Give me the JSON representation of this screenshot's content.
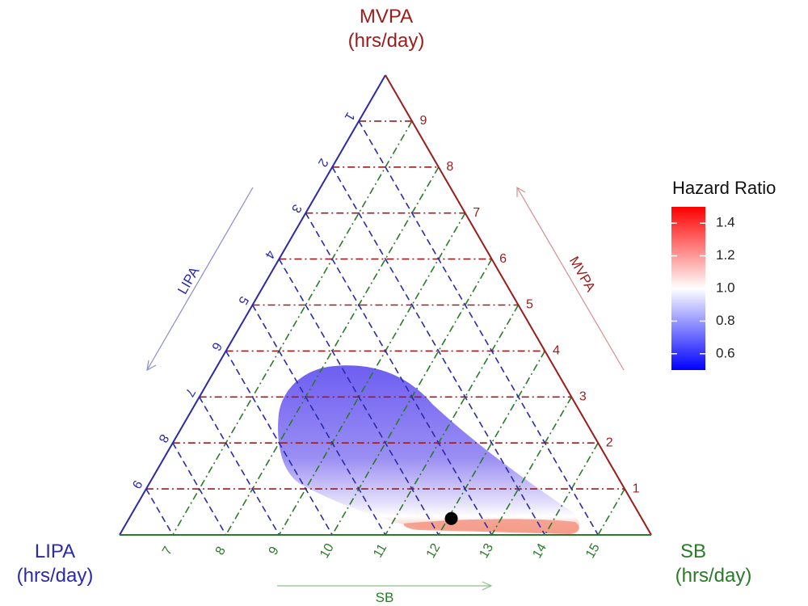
{
  "colors": {
    "mvpa": "#9b1c1c",
    "lipa": "#2a2aa8",
    "sb": "#2a7a2a",
    "blob_low": "#6f5cf0",
    "blob_high": "#f47a6a"
  },
  "chart_data": {
    "type": "ternary",
    "axes": {
      "top": {
        "label": "MVPA",
        "unit": "(hrs/day)",
        "ticks": [
          1,
          2,
          3,
          4,
          5,
          6,
          7,
          8,
          9
        ]
      },
      "left": {
        "label": "LIPA",
        "unit": "(hrs/day)",
        "ticks": [
          1,
          2,
          3,
          4,
          5,
          6,
          7,
          8,
          9
        ]
      },
      "right": {
        "label": "SB",
        "unit": "(hrs/day)",
        "ticks": [
          7,
          8,
          9,
          10,
          11,
          12,
          13,
          14,
          15
        ]
      }
    },
    "direction_labels": {
      "mvpa": "MVPA",
      "lipa": "LIPA",
      "sb": "SB"
    },
    "legend": {
      "title": "Hazard Ratio",
      "ticks": [
        "1.4",
        "1.2",
        "1.0",
        "0.8",
        "0.6"
      ],
      "range": [
        0.5,
        1.5
      ],
      "colors": [
        "#0000ff",
        "#ffffff",
        "#ff0000"
      ]
    },
    "reference_point": {
      "mvpa": 0.5,
      "lipa": 2.2,
      "sb": 12.3
    },
    "region": "hazard ratio surface: values below 1.0 (blue/purple) for higher MVPA, values above 1.0 (red) along low MVPA near SB 12–14.5"
  }
}
